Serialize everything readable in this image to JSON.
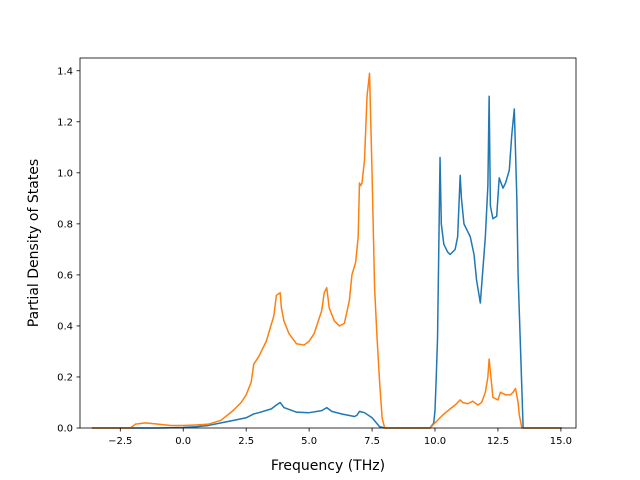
{
  "chart_data": {
    "type": "line",
    "xlabel": "Frequency (THz)",
    "ylabel": "Partial Density of States",
    "xlim": [
      -4.1,
      15.6
    ],
    "ylim": [
      0.0,
      1.45
    ],
    "xticks": [
      -2.5,
      0.0,
      2.5,
      5.0,
      7.5,
      10.0,
      12.5,
      15.0
    ],
    "xtick_labels": [
      "−2.5",
      "0.0",
      "2.5",
      "5.0",
      "7.5",
      "10.0",
      "12.5",
      "15.0"
    ],
    "yticks": [
      0.0,
      0.2,
      0.4,
      0.6,
      0.8,
      1.0,
      1.2,
      1.4
    ],
    "ytick_labels": [
      "0.0",
      "0.2",
      "0.4",
      "0.6",
      "0.8",
      "1.0",
      "1.2",
      "1.4"
    ],
    "grid": false,
    "legend": "none",
    "series": [
      {
        "color": "#1f77b4",
        "x": [
          -3.6,
          -2.0,
          -1.0,
          0.0,
          0.5,
          1.0,
          1.5,
          2.0,
          2.5,
          2.8,
          3.0,
          3.5,
          3.7,
          3.85,
          4.0,
          4.5,
          5.0,
          5.5,
          5.7,
          5.9,
          6.3,
          6.8,
          6.9,
          7.0,
          7.2,
          7.5,
          7.8,
          8.0,
          9.8,
          9.95,
          10.0,
          10.05,
          10.1,
          10.15,
          10.2,
          10.25,
          10.35,
          10.5,
          10.6,
          10.8,
          10.9,
          11.0,
          11.05,
          11.15,
          11.3,
          11.4,
          11.55,
          11.65,
          11.75,
          11.8,
          11.9,
          12.0,
          12.1,
          12.15,
          12.2,
          12.3,
          12.45,
          12.55,
          12.7,
          12.8,
          12.95,
          13.05,
          13.15,
          13.25,
          13.3,
          13.4,
          13.5,
          15.0
        ],
        "y": [
          0.0,
          0.0,
          0.0,
          0.002,
          0.005,
          0.01,
          0.02,
          0.03,
          0.04,
          0.055,
          0.06,
          0.075,
          0.09,
          0.1,
          0.08,
          0.062,
          0.06,
          0.068,
          0.08,
          0.065,
          0.055,
          0.045,
          0.05,
          0.065,
          0.06,
          0.04,
          0.005,
          0.0,
          0.0,
          0.02,
          0.07,
          0.2,
          0.35,
          0.7,
          1.06,
          0.8,
          0.72,
          0.69,
          0.68,
          0.7,
          0.75,
          0.99,
          0.9,
          0.8,
          0.77,
          0.75,
          0.68,
          0.58,
          0.52,
          0.49,
          0.62,
          0.75,
          0.95,
          1.3,
          0.87,
          0.82,
          0.83,
          0.98,
          0.94,
          0.96,
          1.01,
          1.15,
          1.25,
          0.9,
          0.6,
          0.3,
          0.0,
          0.0
        ]
      },
      {
        "color": "#ff7f0e",
        "x": [
          -3.6,
          -2.1,
          -1.9,
          -1.5,
          -1.0,
          -0.5,
          0.0,
          0.5,
          1.0,
          1.5,
          2.0,
          2.3,
          2.5,
          2.7,
          2.8,
          3.0,
          3.3,
          3.6,
          3.7,
          3.85,
          3.9,
          4.0,
          4.2,
          4.5,
          4.8,
          5.0,
          5.2,
          5.5,
          5.6,
          5.7,
          5.8,
          6.0,
          6.2,
          6.4,
          6.6,
          6.7,
          6.85,
          6.95,
          7.0,
          7.05,
          7.1,
          7.2,
          7.3,
          7.4,
          7.5,
          7.6,
          7.7,
          7.8,
          7.9,
          8.0,
          9.8,
          10.0,
          10.3,
          10.6,
          10.8,
          11.0,
          11.1,
          11.3,
          11.5,
          11.7,
          11.85,
          12.0,
          12.1,
          12.15,
          12.3,
          12.5,
          12.6,
          12.8,
          12.9,
          13.0,
          13.1,
          13.2,
          13.3,
          13.35,
          13.45,
          15.0
        ],
        "y": [
          0.0,
          0.0,
          0.015,
          0.02,
          0.015,
          0.01,
          0.01,
          0.012,
          0.015,
          0.03,
          0.07,
          0.1,
          0.13,
          0.18,
          0.25,
          0.28,
          0.34,
          0.44,
          0.52,
          0.53,
          0.47,
          0.42,
          0.37,
          0.33,
          0.325,
          0.34,
          0.37,
          0.46,
          0.53,
          0.55,
          0.47,
          0.42,
          0.4,
          0.41,
          0.5,
          0.6,
          0.65,
          0.75,
          0.96,
          0.95,
          0.96,
          1.05,
          1.3,
          1.39,
          1.0,
          0.55,
          0.35,
          0.18,
          0.04,
          0.0,
          0.0,
          0.02,
          0.05,
          0.075,
          0.09,
          0.11,
          0.1,
          0.095,
          0.105,
          0.09,
          0.1,
          0.14,
          0.2,
          0.27,
          0.12,
          0.11,
          0.14,
          0.13,
          0.13,
          0.13,
          0.14,
          0.155,
          0.1,
          0.05,
          0.0,
          0.0
        ]
      }
    ]
  }
}
